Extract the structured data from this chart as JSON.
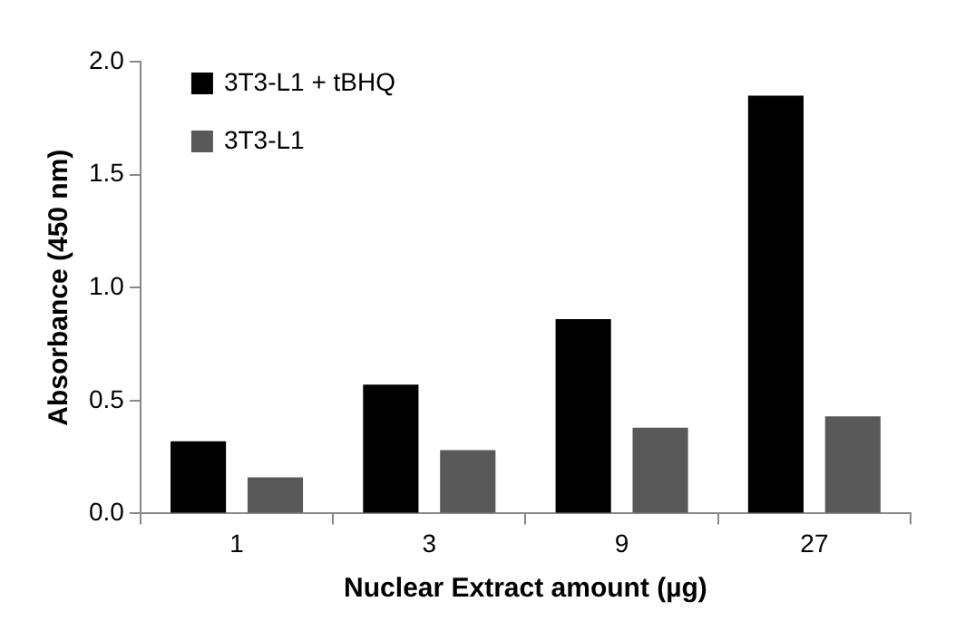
{
  "chart_data": {
    "type": "bar",
    "xlabel": "Nuclear Extract amount (µg)",
    "ylabel": "Absorbance (450 nm)",
    "categories": [
      "1",
      "3",
      "9",
      "27"
    ],
    "series": [
      {
        "name": "3T3-L1 + tBHQ",
        "color": "#000000",
        "values": [
          0.32,
          0.57,
          0.86,
          1.85
        ]
      },
      {
        "name": "3T3-L1",
        "color": "#595959",
        "values": [
          0.16,
          0.28,
          0.38,
          0.43
        ]
      }
    ],
    "ylim": [
      0,
      2
    ],
    "yticks": [
      {
        "value": 0,
        "label": "0.0"
      },
      {
        "value": 0.5,
        "label": "0.5"
      },
      {
        "value": 1,
        "label": "1.0"
      },
      {
        "value": 1.5,
        "label": "1.5"
      },
      {
        "value": 2,
        "label": "2.0"
      }
    ],
    "grid": false,
    "legend": "top left"
  }
}
